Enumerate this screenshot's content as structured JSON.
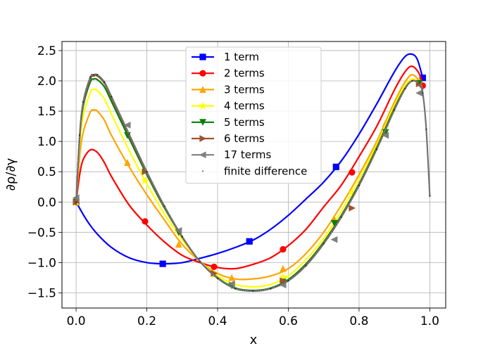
{
  "chart_data": {
    "type": "line",
    "title": "",
    "xlabel": "x",
    "ylabel": "∂ρ/∂γ",
    "xlim": [
      -0.04,
      1.045
    ],
    "ylim": [
      -1.75,
      2.65
    ],
    "grid": true,
    "legend_position": "top-center",
    "x_ticks": [
      0.0,
      0.2,
      0.4,
      0.6,
      0.8,
      1.0
    ],
    "x_tick_labels": [
      "0.0",
      "0.2",
      "0.4",
      "0.6",
      "0.8",
      "1.0"
    ],
    "y_ticks": [
      -1.5,
      -1.0,
      -0.5,
      0.0,
      0.5,
      1.0,
      1.5,
      2.0,
      2.5
    ],
    "y_tick_labels": [
      "−1.5",
      "−1.0",
      "−0.5",
      "0.0",
      "0.5",
      "1.0",
      "1.5",
      "2.0",
      "2.5"
    ],
    "series": [
      {
        "name": "1 term",
        "color": "#0000ff",
        "marker": "square",
        "x": [
          0.0,
          0.03,
          0.06,
          0.1,
          0.15,
          0.2,
          0.25,
          0.3,
          0.35,
          0.4,
          0.45,
          0.5,
          0.55,
          0.6,
          0.65,
          0.7,
          0.75,
          0.8,
          0.85,
          0.9,
          0.93,
          0.95,
          0.965,
          0.98
        ],
        "y": [
          0.0,
          -0.3,
          -0.53,
          -0.75,
          -0.92,
          -1.0,
          -1.02,
          -1.0,
          -0.93,
          -0.85,
          -0.75,
          -0.63,
          -0.45,
          -0.22,
          0.05,
          0.33,
          0.68,
          1.12,
          1.62,
          2.15,
          2.4,
          2.44,
          2.35,
          2.05
        ],
        "marker_x": [
          0.0,
          0.245,
          0.49,
          0.735,
          0.98
        ],
        "marker_y": [
          0.0,
          -1.02,
          -0.65,
          0.58,
          2.05
        ]
      },
      {
        "name": "2 terms",
        "color": "#ff0000",
        "marker": "circle",
        "x": [
          0.0,
          0.01,
          0.02,
          0.04,
          0.06,
          0.08,
          0.1,
          0.15,
          0.2,
          0.25,
          0.3,
          0.35,
          0.4,
          0.45,
          0.5,
          0.55,
          0.6,
          0.65,
          0.7,
          0.75,
          0.8,
          0.85,
          0.9,
          0.93,
          0.95,
          0.97,
          0.98
        ],
        "y": [
          0.0,
          0.45,
          0.7,
          0.86,
          0.82,
          0.65,
          0.42,
          -0.05,
          -0.38,
          -0.66,
          -0.88,
          -1.0,
          -1.08,
          -1.1,
          -1.03,
          -0.92,
          -0.72,
          -0.45,
          -0.08,
          0.28,
          0.75,
          1.25,
          1.85,
          2.15,
          2.24,
          2.12,
          1.92
        ],
        "marker_x": [
          0.0,
          0.195,
          0.39,
          0.585,
          0.78,
          0.98
        ],
        "marker_y": [
          0.0,
          -0.32,
          -1.07,
          -0.78,
          0.49,
          1.92
        ]
      },
      {
        "name": "3 terms",
        "color": "#ffa500",
        "marker": "triangle-up",
        "x": [
          0.0,
          0.01,
          0.02,
          0.04,
          0.05,
          0.06,
          0.08,
          0.1,
          0.15,
          0.2,
          0.25,
          0.3,
          0.35,
          0.4,
          0.45,
          0.5,
          0.55,
          0.6,
          0.65,
          0.7,
          0.75,
          0.8,
          0.85,
          0.9,
          0.93,
          0.95,
          0.97,
          0.98
        ],
        "y": [
          0.0,
          0.75,
          1.15,
          1.48,
          1.52,
          1.5,
          1.35,
          1.1,
          0.58,
          0.12,
          -0.3,
          -0.7,
          -0.98,
          -1.18,
          -1.27,
          -1.27,
          -1.22,
          -1.1,
          -0.85,
          -0.5,
          -0.05,
          0.45,
          1.0,
          1.65,
          1.98,
          2.1,
          2.0,
          1.85
        ],
        "marker_x": [
          0.0,
          0.145,
          0.29,
          0.44,
          0.585,
          0.73,
          0.875,
          0.97
        ],
        "marker_y": [
          0.0,
          0.65,
          -0.7,
          -1.25,
          -1.1,
          -0.28,
          1.3,
          2.0
        ]
      },
      {
        "name": "4 terms",
        "color": "#ffff00",
        "marker": "star",
        "x": [
          0.0,
          0.01,
          0.02,
          0.04,
          0.05,
          0.06,
          0.08,
          0.1,
          0.15,
          0.2,
          0.25,
          0.3,
          0.35,
          0.4,
          0.45,
          0.5,
          0.55,
          0.6,
          0.65,
          0.7,
          0.75,
          0.8,
          0.85,
          0.9,
          0.93,
          0.95,
          0.97,
          0.98
        ],
        "y": [
          0.0,
          0.95,
          1.42,
          1.8,
          1.86,
          1.84,
          1.7,
          1.45,
          0.85,
          0.3,
          -0.2,
          -0.62,
          -0.98,
          -1.22,
          -1.36,
          -1.4,
          -1.36,
          -1.22,
          -0.95,
          -0.6,
          -0.15,
          0.38,
          0.95,
          1.6,
          1.92,
          2.03,
          1.97,
          1.85
        ],
        "marker_x": [
          0.0,
          0.195,
          0.39,
          0.585,
          0.78,
          0.97
        ],
        "marker_y": [
          0.0,
          0.35,
          -1.2,
          -1.24,
          0.15,
          1.97
        ]
      },
      {
        "name": "5 terms",
        "color": "#008000",
        "marker": "triangle-down",
        "x": [
          0.0,
          0.01,
          0.02,
          0.04,
          0.05,
          0.06,
          0.08,
          0.1,
          0.15,
          0.2,
          0.25,
          0.3,
          0.35,
          0.4,
          0.45,
          0.5,
          0.55,
          0.6,
          0.65,
          0.7,
          0.75,
          0.8,
          0.85,
          0.9,
          0.93,
          0.95,
          0.97,
          0.98
        ],
        "y": [
          0.0,
          1.05,
          1.58,
          1.98,
          2.03,
          2.02,
          1.9,
          1.66,
          1.05,
          0.45,
          -0.1,
          -0.58,
          -0.98,
          -1.25,
          -1.42,
          -1.46,
          -1.42,
          -1.28,
          -1.02,
          -0.66,
          -0.22,
          0.3,
          0.9,
          1.55,
          1.88,
          2.0,
          1.96,
          1.85
        ],
        "marker_x": [
          0.0,
          0.145,
          0.29,
          0.44,
          0.585,
          0.73,
          0.875,
          0.97
        ],
        "marker_y": [
          0.0,
          1.1,
          -0.5,
          -1.38,
          -1.32,
          -0.35,
          1.15,
          1.96
        ]
      },
      {
        "name": "6 terms",
        "color": "#a0522d",
        "marker": "triangle-right",
        "x": [
          0.0,
          0.01,
          0.02,
          0.04,
          0.05,
          0.06,
          0.08,
          0.1,
          0.15,
          0.2,
          0.25,
          0.3,
          0.35,
          0.4,
          0.45,
          0.5,
          0.55,
          0.6,
          0.65,
          0.7,
          0.75,
          0.8,
          0.85,
          0.9,
          0.93,
          0.95,
          0.97,
          0.98
        ],
        "y": [
          0.0,
          1.08,
          1.62,
          2.03,
          2.08,
          2.08,
          1.96,
          1.72,
          1.1,
          0.48,
          -0.08,
          -0.58,
          -0.98,
          -1.26,
          -1.43,
          -1.47,
          -1.43,
          -1.3,
          -1.04,
          -0.68,
          -0.24,
          0.28,
          0.88,
          1.53,
          1.87,
          2.0,
          1.95,
          1.83
        ],
        "marker_x": [
          0.0,
          0.195,
          0.39,
          0.585,
          0.78,
          0.97
        ],
        "marker_y": [
          0.0,
          0.5,
          -1.18,
          -1.3,
          -0.1,
          1.95
        ]
      },
      {
        "name": "17 terms",
        "color": "#808080",
        "marker": "triangle-left",
        "x": [
          0.0,
          0.01,
          0.02,
          0.04,
          0.05,
          0.06,
          0.08,
          0.1,
          0.15,
          0.2,
          0.25,
          0.3,
          0.35,
          0.4,
          0.45,
          0.5,
          0.55,
          0.6,
          0.65,
          0.7,
          0.75,
          0.8,
          0.85,
          0.9,
          0.93,
          0.95,
          0.97,
          0.98,
          0.99,
          1.0
        ],
        "y": [
          0.0,
          1.1,
          1.65,
          2.06,
          2.1,
          2.1,
          1.98,
          1.74,
          1.12,
          0.5,
          -0.07,
          -0.57,
          -0.98,
          -1.26,
          -1.43,
          -1.47,
          -1.43,
          -1.3,
          -1.05,
          -0.69,
          -0.25,
          0.27,
          0.87,
          1.52,
          1.87,
          2.0,
          1.96,
          1.8,
          1.2,
          0.1
        ],
        "marker_x": [
          0.0,
          0.145,
          0.29,
          0.44,
          0.585,
          0.73,
          0.875,
          0.97
        ],
        "marker_y": [
          0.07,
          1.27,
          -0.47,
          -1.35,
          -1.37,
          -0.62,
          1.1,
          1.8
        ]
      },
      {
        "name": "finite difference",
        "color": "#808080",
        "marker": "dot",
        "x": [
          0.0,
          0.01,
          0.02,
          0.04,
          0.05,
          0.06,
          0.08,
          0.1,
          0.15,
          0.2,
          0.25,
          0.3,
          0.35,
          0.4,
          0.45,
          0.5,
          0.55,
          0.6,
          0.65,
          0.7,
          0.75,
          0.8,
          0.85,
          0.9,
          0.93,
          0.95,
          0.97,
          0.98,
          0.99,
          1.0
        ],
        "y": [
          0.0,
          1.1,
          1.65,
          2.06,
          2.1,
          2.1,
          1.98,
          1.74,
          1.12,
          0.5,
          -0.07,
          -0.57,
          -0.98,
          -1.26,
          -1.43,
          -1.47,
          -1.43,
          -1.3,
          -1.05,
          -0.69,
          -0.25,
          0.27,
          0.87,
          1.52,
          1.87,
          2.0,
          1.96,
          1.8,
          1.2,
          0.1
        ]
      }
    ]
  }
}
